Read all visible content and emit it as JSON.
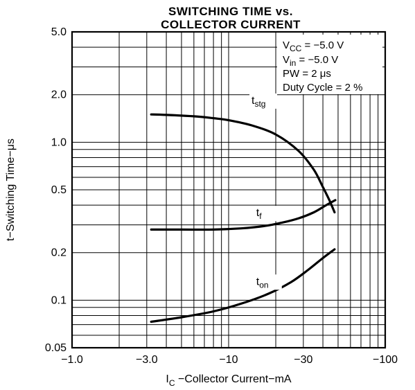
{
  "chart_data": {
    "type": "line",
    "title_line1": "SWITCHING TIME vs.",
    "title_line2": "COLLECTOR CURRENT",
    "xlabel": {
      "main": "I",
      "sub": "C",
      "rest": " −Collector Current−mA"
    },
    "ylabel": "t−Switching Time−μs",
    "x_scale": "log",
    "y_scale": "log",
    "xlim": [
      -1.0,
      -100
    ],
    "ylim": [
      0.05,
      5.0
    ],
    "x_ticks": [
      {
        "value": 1.0,
        "label": "−1.0"
      },
      {
        "value": 3.0,
        "label": "−3.0"
      },
      {
        "value": 10,
        "label": "−10"
      },
      {
        "value": 30,
        "label": "−30"
      },
      {
        "value": 100,
        "label": "−100"
      }
    ],
    "y_ticks": [
      {
        "value": 0.05,
        "label": "0.05"
      },
      {
        "value": 0.1,
        "label": "0.1"
      },
      {
        "value": 0.2,
        "label": "0.2"
      },
      {
        "value": 0.5,
        "label": "0.5"
      },
      {
        "value": 1.0,
        "label": "1.0"
      },
      {
        "value": 2.0,
        "label": "2.0"
      },
      {
        "value": 5.0,
        "label": "5.0"
      }
    ],
    "grid": true,
    "conditions": {
      "vcc": {
        "main": "V",
        "sub": "CC",
        "rest": " = −5.0 V"
      },
      "vin": {
        "main": "V",
        "sub": "in",
        "rest": " = −5.0 V"
      },
      "pw": "PW = 2 μs",
      "duty": "Duty Cycle = 2 %"
    },
    "series": [
      {
        "name": "t",
        "sub": "stg",
        "x": [
          -3.2,
          -4,
          -6,
          -8,
          -10,
          -14,
          -20,
          -28,
          -35,
          -40,
          -44,
          -47.5
        ],
        "y": [
          1.5,
          1.49,
          1.46,
          1.42,
          1.38,
          1.28,
          1.12,
          0.88,
          0.67,
          0.52,
          0.43,
          0.36
        ]
      },
      {
        "name": "t",
        "sub": "f",
        "x": [
          -3.2,
          -5,
          -8,
          -12,
          -17,
          -22,
          -28,
          -35,
          -42,
          -48
        ],
        "y": [
          0.28,
          0.28,
          0.28,
          0.285,
          0.295,
          0.31,
          0.33,
          0.36,
          0.4,
          0.43
        ]
      },
      {
        "name": "t",
        "sub": "on",
        "x": [
          -3.2,
          -5,
          -8,
          -12,
          -18,
          -25,
          -32,
          -40,
          -47.5
        ],
        "y": [
          0.073,
          0.078,
          0.085,
          0.095,
          0.11,
          0.13,
          0.155,
          0.185,
          0.21
        ]
      }
    ]
  }
}
